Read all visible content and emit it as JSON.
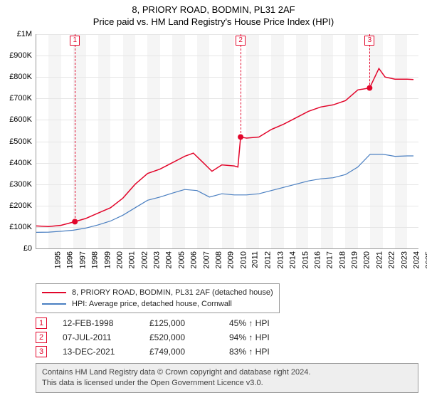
{
  "header": {
    "line1": "8, PRIORY ROAD, BODMIN, PL31 2AF",
    "line2": "Price paid vs. HM Land Registry's House Price Index (HPI)"
  },
  "chart": {
    "type": "line",
    "background_color": "#ffffff",
    "band_color": "#f5f5f5",
    "grid_color": "#e6e6e6",
    "axis_color": "#999999",
    "tick_fontsize": 11,
    "x": {
      "min": 1995,
      "max": 2025.9,
      "ticks": [
        1995,
        1996,
        1997,
        1998,
        1999,
        2000,
        2001,
        2002,
        2003,
        2004,
        2005,
        2006,
        2007,
        2008,
        2009,
        2010,
        2011,
        2012,
        2013,
        2014,
        2015,
        2016,
        2017,
        2018,
        2019,
        2020,
        2021,
        2022,
        2023,
        2024,
        2025
      ]
    },
    "y": {
      "min": 0,
      "max": 1000000,
      "ticks": [
        0,
        100000,
        200000,
        300000,
        400000,
        500000,
        600000,
        700000,
        800000,
        900000,
        1000000
      ],
      "labels": [
        "£0",
        "£100K",
        "£200K",
        "£300K",
        "£400K",
        "£500K",
        "£600K",
        "£700K",
        "£800K",
        "£900K",
        "£1M"
      ]
    },
    "series": [
      {
        "name": "property",
        "legend_label": "8, PRIORY ROAD, BODMIN, PL31 2AF (detached house)",
        "color": "#e2062b",
        "line_width": 1.5,
        "points": [
          [
            1995.0,
            105000
          ],
          [
            1996.0,
            102000
          ],
          [
            1997.0,
            108000
          ],
          [
            1998.12,
            125000
          ],
          [
            1999.0,
            140000
          ],
          [
            2000.0,
            165000
          ],
          [
            2001.0,
            190000
          ],
          [
            2002.0,
            235000
          ],
          [
            2003.0,
            300000
          ],
          [
            2004.0,
            350000
          ],
          [
            2005.0,
            370000
          ],
          [
            2006.0,
            400000
          ],
          [
            2007.0,
            430000
          ],
          [
            2007.7,
            445000
          ],
          [
            2008.5,
            400000
          ],
          [
            2009.2,
            360000
          ],
          [
            2010.0,
            390000
          ],
          [
            2011.0,
            385000
          ],
          [
            2011.3,
            380000
          ],
          [
            2011.52,
            520000
          ],
          [
            2012.0,
            515000
          ],
          [
            2013.0,
            520000
          ],
          [
            2014.0,
            555000
          ],
          [
            2015.0,
            580000
          ],
          [
            2016.0,
            610000
          ],
          [
            2017.0,
            640000
          ],
          [
            2018.0,
            660000
          ],
          [
            2019.0,
            670000
          ],
          [
            2020.0,
            690000
          ],
          [
            2021.0,
            740000
          ],
          [
            2021.95,
            749000
          ],
          [
            2022.7,
            840000
          ],
          [
            2023.2,
            800000
          ],
          [
            2024.0,
            790000
          ],
          [
            2025.0,
            790000
          ],
          [
            2025.5,
            788000
          ]
        ]
      },
      {
        "name": "hpi",
        "legend_label": "HPI: Average price, detached house, Cornwall",
        "color": "#4a7fc1",
        "line_width": 1.2,
        "points": [
          [
            1995.0,
            75000
          ],
          [
            1996.0,
            76000
          ],
          [
            1997.0,
            80000
          ],
          [
            1998.0,
            85000
          ],
          [
            1999.0,
            95000
          ],
          [
            2000.0,
            110000
          ],
          [
            2001.0,
            128000
          ],
          [
            2002.0,
            155000
          ],
          [
            2003.0,
            190000
          ],
          [
            2004.0,
            225000
          ],
          [
            2005.0,
            240000
          ],
          [
            2006.0,
            258000
          ],
          [
            2007.0,
            275000
          ],
          [
            2008.0,
            270000
          ],
          [
            2009.0,
            240000
          ],
          [
            2010.0,
            255000
          ],
          [
            2011.0,
            250000
          ],
          [
            2012.0,
            250000
          ],
          [
            2013.0,
            255000
          ],
          [
            2014.0,
            270000
          ],
          [
            2015.0,
            285000
          ],
          [
            2016.0,
            300000
          ],
          [
            2017.0,
            315000
          ],
          [
            2018.0,
            325000
          ],
          [
            2019.0,
            330000
          ],
          [
            2020.0,
            345000
          ],
          [
            2021.0,
            380000
          ],
          [
            2022.0,
            440000
          ],
          [
            2023.0,
            440000
          ],
          [
            2024.0,
            430000
          ],
          [
            2025.0,
            432000
          ],
          [
            2025.5,
            432000
          ]
        ]
      }
    ],
    "sale_markers": [
      {
        "n": "1",
        "x": 1998.12,
        "y": 125000
      },
      {
        "n": "2",
        "x": 2011.52,
        "y": 520000
      },
      {
        "n": "3",
        "x": 2021.95,
        "y": 749000
      }
    ]
  },
  "legend": {
    "rows": [
      {
        "color": "#e2062b",
        "label": "8, PRIORY ROAD, BODMIN, PL31 2AF (detached house)"
      },
      {
        "color": "#4a7fc1",
        "label": "HPI: Average price, detached house, Cornwall"
      }
    ]
  },
  "sales": [
    {
      "n": "1",
      "date": "12-FEB-1998",
      "price": "£125,000",
      "vs_hpi": "45% ↑ HPI"
    },
    {
      "n": "2",
      "date": "07-JUL-2011",
      "price": "£520,000",
      "vs_hpi": "94% ↑ HPI"
    },
    {
      "n": "3",
      "date": "13-DEC-2021",
      "price": "£749,000",
      "vs_hpi": "83% ↑ HPI"
    }
  ],
  "footer": {
    "line1": "Contains HM Land Registry data © Crown copyright and database right 2024.",
    "line2": "This data is licensed under the Open Government Licence v3.0."
  }
}
